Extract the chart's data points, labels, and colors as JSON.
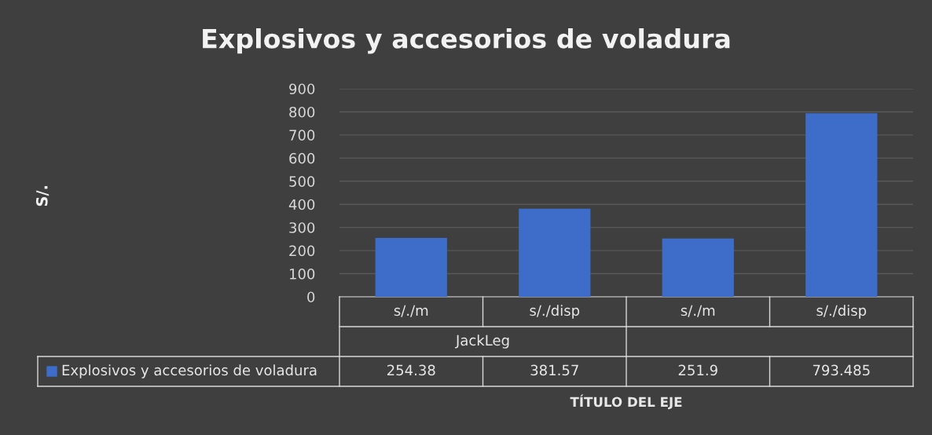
{
  "chart_data": {
    "type": "bar",
    "title": "Explosivos y accesorios de voladura",
    "categories": [
      "s/./m",
      "s/./disp",
      "s/./m",
      "s/./disp"
    ],
    "annotations": [
      "JackLeg",
      "S/.",
      "TÍTULO DEL EJE"
    ],
    "series": [
      {
        "name": "Explosivos y accesorios de voladura",
        "color": "#3d6cc9",
        "values": [
          254.38,
          381.57,
          251.9,
          793.485
        ]
      }
    ],
    "ylim": [
      0,
      900
    ],
    "yticks": [
      0,
      100,
      200,
      300,
      400,
      500,
      600,
      700,
      800,
      900
    ],
    "grid": "y",
    "data_labels": true,
    "legend": "bottom"
  }
}
